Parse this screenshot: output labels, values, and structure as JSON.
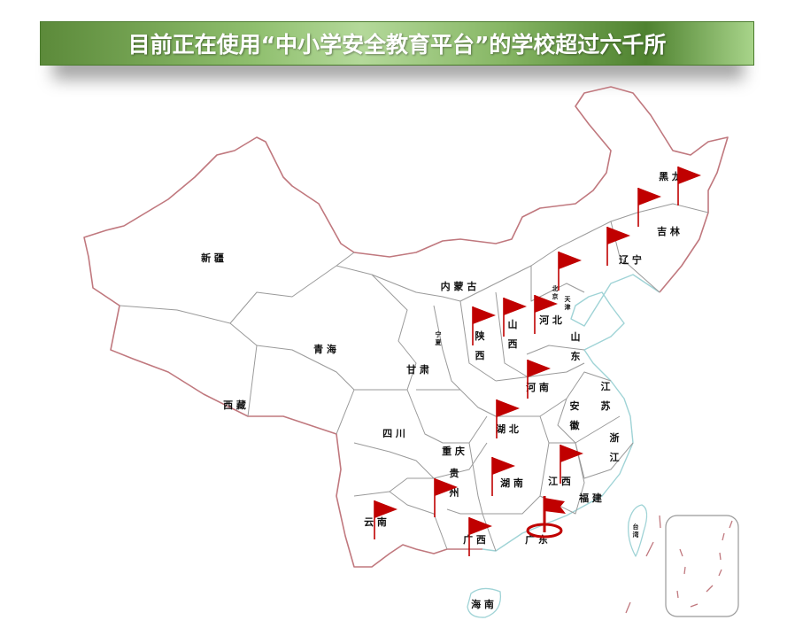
{
  "title": "目前正在使用“中小学安全教育平台”的学校超过六千所",
  "colors": {
    "flag": "#c00000",
    "land_border": "#c0787e",
    "coast": "#9fd3d6",
    "province_border": "#9a9a9a",
    "banner_green": "#5c8a3a"
  },
  "map": {
    "provinces": [
      "黑 龙",
      "吉 林",
      "辽 宁",
      "北京",
      "天津",
      "河 北",
      "山 东",
      "内 蒙 古",
      "宁夏",
      "陕 西",
      "山 西",
      "甘 肃",
      "青 海",
      "新 疆",
      "西 藏",
      "四 川",
      "重 庆",
      "贵 州",
      "云 南",
      "广 西",
      "广 东",
      "湖 南",
      "湖 北",
      "河 南",
      "安 徽",
      "江 苏",
      "浙 江",
      "江 西",
      "福 建",
      "台湾",
      "海 南"
    ],
    "flagged_provinces": [
      "黑龙江",
      "吉林",
      "辽宁",
      "北京",
      "陕西",
      "山西",
      "河北",
      "河南",
      "湖北",
      "江西",
      "湖南",
      "贵州",
      "云南",
      "广西",
      "广东"
    ],
    "highlighted_province": "广东",
    "flag_icon": "red-flag-icon",
    "marker_icon": "location-target-icon"
  }
}
